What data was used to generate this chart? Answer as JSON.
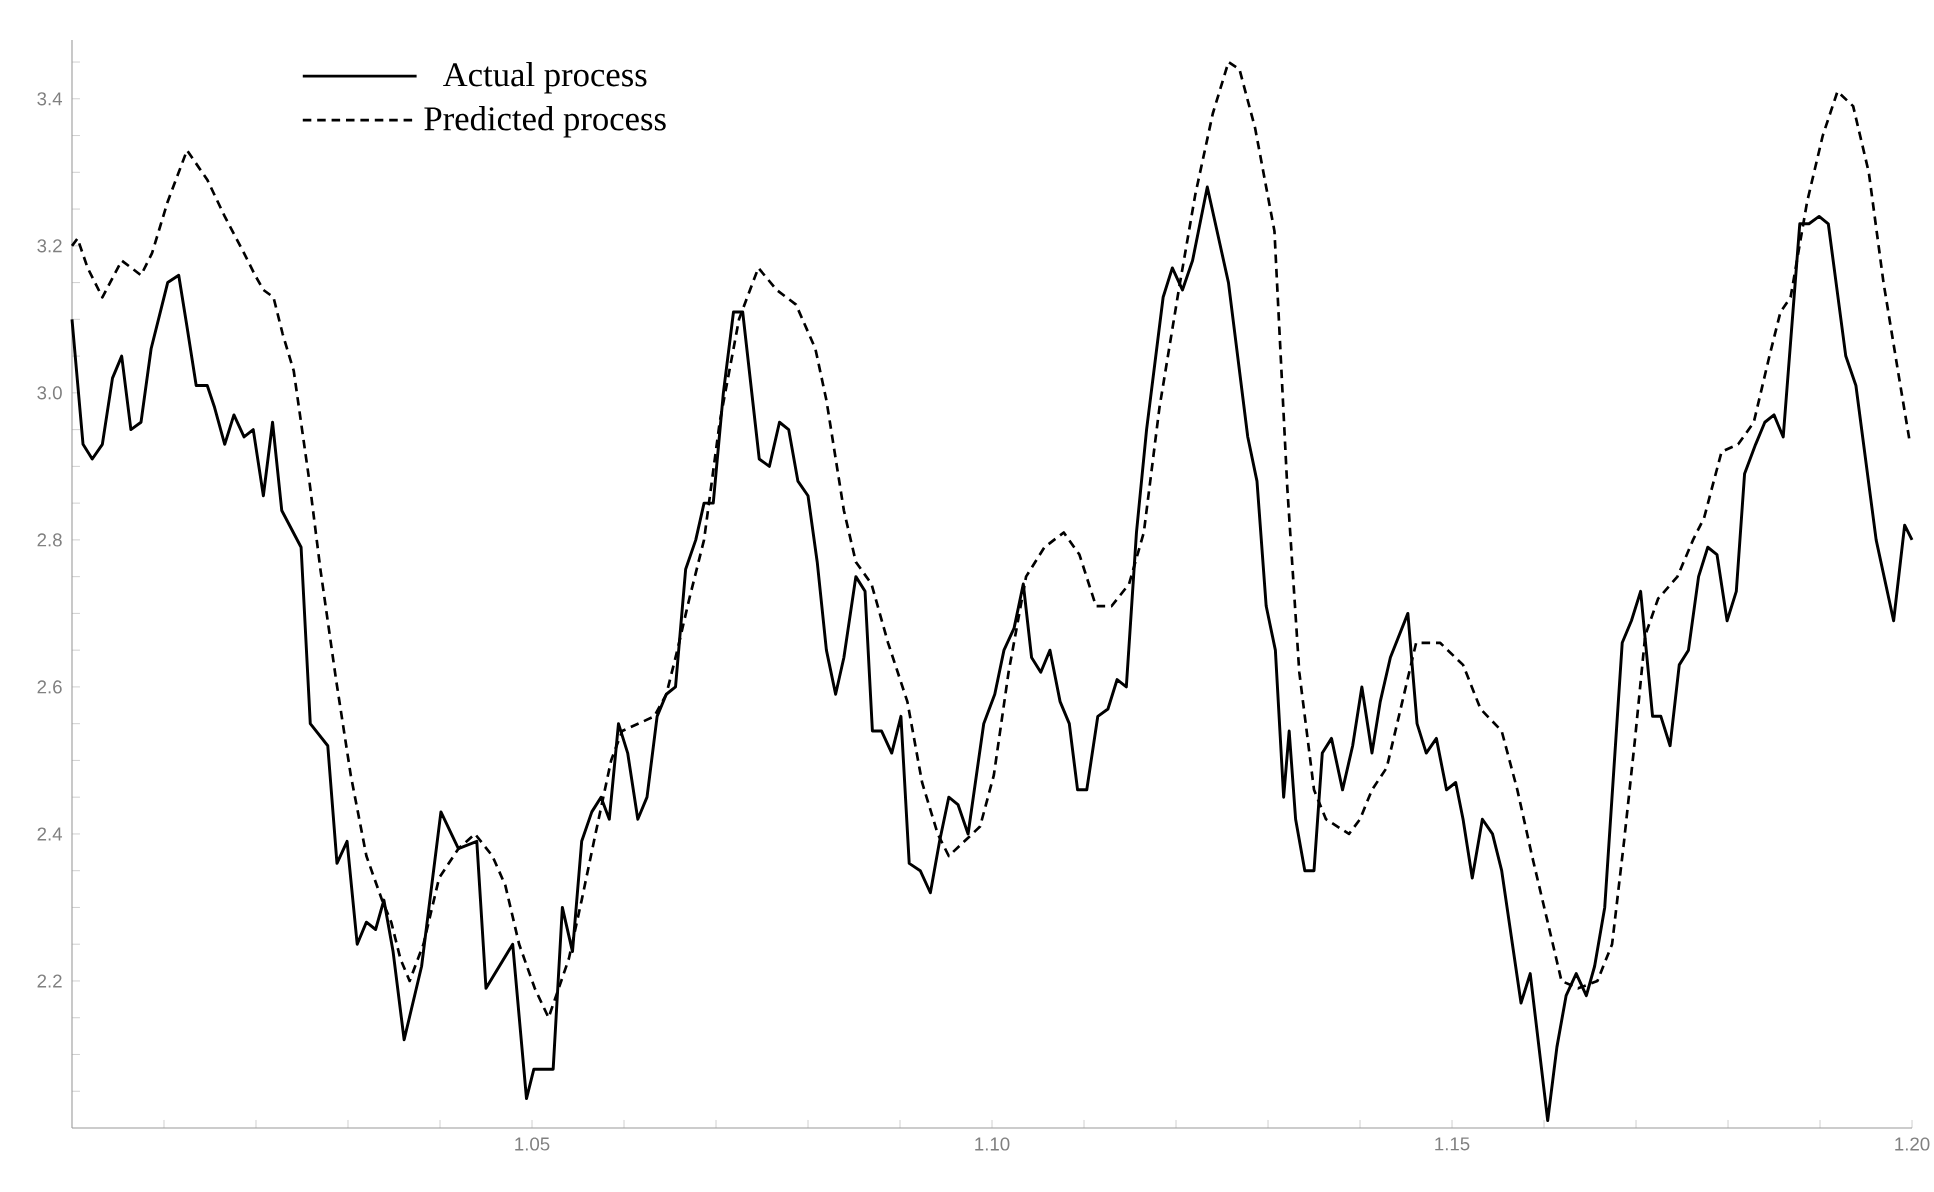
{
  "chart_data": {
    "type": "line",
    "xlim": [
      1.0,
      1.2
    ],
    "ylim": [
      2.0,
      3.48
    ],
    "xticks": [
      {
        "value": 1.01,
        "label": null
      },
      {
        "value": 1.02,
        "label": null
      },
      {
        "value": 1.03,
        "label": null
      },
      {
        "value": 1.04,
        "label": null
      },
      1.05,
      {
        "value": 1.06,
        "label": null
      },
      {
        "value": 1.07,
        "label": null
      },
      {
        "value": 1.08,
        "label": null
      },
      {
        "value": 1.09,
        "label": null
      },
      {
        "value": 1.1,
        "label": "1.10"
      },
      {
        "value": 1.11,
        "label": null
      },
      {
        "value": 1.12,
        "label": null
      },
      {
        "value": 1.13,
        "label": null
      },
      {
        "value": 1.14,
        "label": null
      },
      1.15,
      {
        "value": 1.16,
        "label": null
      },
      {
        "value": 1.17,
        "label": null
      },
      {
        "value": 1.18,
        "label": null
      },
      {
        "value": 1.19,
        "label": null
      },
      {
        "value": 1.2,
        "label": "1.20"
      }
    ],
    "yticks": [
      {
        "value": 2.05,
        "label": null
      },
      {
        "value": 2.1,
        "label": null
      },
      {
        "value": 2.15,
        "label": null
      },
      2.2,
      {
        "value": 2.25,
        "label": null
      },
      {
        "value": 2.3,
        "label": null
      },
      {
        "value": 2.35,
        "label": null
      },
      2.4,
      {
        "value": 2.45,
        "label": null
      },
      {
        "value": 2.5,
        "label": null
      },
      {
        "value": 2.55,
        "label": null
      },
      2.6,
      {
        "value": 2.65,
        "label": null
      },
      {
        "value": 2.7,
        "label": null
      },
      {
        "value": 2.75,
        "label": null
      },
      2.8,
      {
        "value": 2.85,
        "label": null
      },
      {
        "value": 2.9,
        "label": null
      },
      {
        "value": 2.95,
        "label": null
      },
      {
        "value": 3.0,
        "label": "3.0"
      },
      {
        "value": 3.05,
        "label": null
      },
      {
        "value": 3.1,
        "label": null
      },
      {
        "value": 3.15,
        "label": null
      },
      3.2,
      {
        "value": 3.25,
        "label": null
      },
      {
        "value": 3.3,
        "label": null
      },
      {
        "value": 3.35,
        "label": null
      },
      3.4,
      {
        "value": 3.45,
        "label": null
      }
    ],
    "legend": "top left",
    "grid": false,
    "marker": "none",
    "series": [
      {
        "name": "Actual process",
        "color": "#000000",
        "line_style": "solid",
        "x": [
          1.0,
          1.0012,
          1.0022,
          1.0033,
          1.0044,
          1.0054,
          1.0064,
          1.0075,
          1.0086,
          1.0094,
          1.0104,
          1.0116,
          1.0125,
          1.0135,
          1.0147,
          1.0155,
          1.0166,
          1.0176,
          1.0187,
          1.0197,
          1.0208,
          1.0218,
          1.0228,
          1.0249,
          1.0259,
          1.0278,
          1.0288,
          1.0299,
          1.031,
          1.032,
          1.033,
          1.0339,
          1.0349,
          1.0361,
          1.038,
          1.0401,
          1.042,
          1.044,
          1.045,
          1.0479,
          1.0494,
          1.0502,
          1.0523,
          1.0533,
          1.0544,
          1.0554,
          1.0565,
          1.0575,
          1.0584,
          1.0594,
          1.0604,
          1.0615,
          1.0625,
          1.0636,
          1.0646,
          1.0656,
          1.0667,
          1.0678,
          1.0687,
          1.0697,
          1.0708,
          1.0719,
          1.0729,
          1.0747,
          1.0758,
          1.0769,
          1.0779,
          1.0789,
          1.08,
          1.081,
          1.082,
          1.083,
          1.0839,
          1.0852,
          1.0862,
          1.087,
          1.088,
          1.0891,
          1.0901,
          1.091,
          1.0922,
          1.0933,
          1.0943,
          1.0953,
          1.0963,
          1.0974,
          1.0991,
          1.1003,
          1.1013,
          1.1024,
          1.1034,
          1.1043,
          1.1053,
          1.1063,
          1.1074,
          1.1084,
          1.1093,
          1.1103,
          1.1115,
          1.1126,
          1.1136,
          1.1146,
          1.1157,
          1.1168,
          1.1186,
          1.1196,
          1.1207,
          1.1218,
          1.1234,
          1.1257,
          1.1278,
          1.1288,
          1.1298,
          1.1308,
          1.1317,
          1.1323,
          1.133,
          1.134,
          1.135,
          1.1359,
          1.1369,
          1.1381,
          1.1392,
          1.1402,
          1.1413,
          1.1422,
          1.1433,
          1.1452,
          1.1462,
          1.1472,
          1.1483,
          1.1494,
          1.1504,
          1.1512,
          1.1522,
          1.1533,
          1.1544,
          1.1554,
          1.1575,
          1.1585,
          1.1604,
          1.1614,
          1.1624,
          1.1635,
          1.1646,
          1.1655,
          1.1666,
          1.1685,
          1.1695,
          1.1705,
          1.1718,
          1.1727,
          1.1737,
          1.1747,
          1.1757,
          1.1768,
          1.1778,
          1.1788,
          1.1799,
          1.1809,
          1.1818,
          1.183,
          1.184,
          1.185,
          1.186,
          1.1878,
          1.1888,
          1.1899,
          1.1909,
          1.1928,
          1.1939,
          1.1961,
          1.198,
          1.1992,
          1.2
        ],
        "values": [
          3.1,
          2.93,
          2.91,
          2.93,
          3.02,
          3.05,
          2.95,
          2.96,
          3.06,
          3.1,
          3.15,
          3.16,
          3.09,
          3.01,
          3.01,
          2.98,
          2.93,
          2.97,
          2.94,
          2.95,
          2.86,
          2.96,
          2.84,
          2.79,
          2.55,
          2.52,
          2.36,
          2.39,
          2.25,
          2.28,
          2.27,
          2.31,
          2.24,
          2.12,
          2.22,
          2.43,
          2.38,
          2.39,
          2.19,
          2.25,
          2.04,
          2.08,
          2.08,
          2.3,
          2.24,
          2.39,
          2.43,
          2.45,
          2.42,
          2.55,
          2.51,
          2.42,
          2.45,
          2.56,
          2.59,
          2.6,
          2.76,
          2.8,
          2.85,
          2.85,
          3.0,
          3.11,
          3.11,
          2.91,
          2.9,
          2.96,
          2.95,
          2.88,
          2.86,
          2.77,
          2.65,
          2.59,
          2.64,
          2.75,
          2.73,
          2.54,
          2.54,
          2.51,
          2.56,
          2.36,
          2.35,
          2.32,
          2.39,
          2.45,
          2.44,
          2.4,
          2.55,
          2.59,
          2.65,
          2.68,
          2.74,
          2.64,
          2.62,
          2.65,
          2.58,
          2.55,
          2.46,
          2.46,
          2.56,
          2.57,
          2.61,
          2.6,
          2.81,
          2.95,
          3.13,
          3.17,
          3.14,
          3.18,
          3.28,
          3.15,
          2.94,
          2.88,
          2.71,
          2.65,
          2.45,
          2.54,
          2.42,
          2.35,
          2.35,
          2.51,
          2.53,
          2.46,
          2.52,
          2.6,
          2.51,
          2.58,
          2.64,
          2.7,
          2.55,
          2.51,
          2.53,
          2.46,
          2.47,
          2.42,
          2.34,
          2.42,
          2.4,
          2.35,
          2.17,
          2.21,
          2.01,
          2.11,
          2.18,
          2.21,
          2.18,
          2.22,
          2.3,
          2.66,
          2.69,
          2.73,
          2.56,
          2.56,
          2.52,
          2.63,
          2.65,
          2.75,
          2.79,
          2.78,
          2.69,
          2.73,
          2.89,
          2.93,
          2.96,
          2.97,
          2.94,
          3.23,
          3.23,
          3.24,
          3.23,
          3.05,
          3.01,
          2.8,
          2.69,
          2.82,
          2.8
        ]
      },
      {
        "name": "Predicted process",
        "color": "#000000",
        "line_style": "dashed",
        "x": [
          1.0,
          1.0006,
          1.0017,
          1.0033,
          1.0054,
          1.0075,
          1.0087,
          1.0104,
          1.0125,
          1.0147,
          1.0166,
          1.0187,
          1.0199,
          1.0208,
          1.0219,
          1.0229,
          1.0241,
          1.0258,
          1.027,
          1.0287,
          1.0303,
          1.032,
          1.0337,
          1.0347,
          1.0357,
          1.0367,
          1.0382,
          1.0399,
          1.042,
          1.0438,
          1.0457,
          1.0471,
          1.0486,
          1.0503,
          1.0518,
          1.054,
          1.0554,
          1.0569,
          1.0586,
          1.0598,
          1.0633,
          1.0646,
          1.0658,
          1.0671,
          1.0687,
          1.0704,
          1.0725,
          1.0746,
          1.0766,
          1.0787,
          1.0808,
          1.082,
          1.0839,
          1.0852,
          1.0869,
          1.0887,
          1.0908,
          1.0924,
          1.0941,
          1.0953,
          1.097,
          1.0987,
          1.1002,
          1.1018,
          1.1037,
          1.1057,
          1.1078,
          1.1095,
          1.1113,
          1.113,
          1.1149,
          1.1165,
          1.1182,
          1.1203,
          1.1221,
          1.124,
          1.1257,
          1.1269,
          1.1286,
          1.1307,
          1.1321,
          1.1334,
          1.135,
          1.1363,
          1.1388,
          1.14,
          1.1413,
          1.1429,
          1.1446,
          1.1461,
          1.1487,
          1.1512,
          1.1531,
          1.1554,
          1.1571,
          1.1587,
          1.1604,
          1.1619,
          1.1637,
          1.1658,
          1.1674,
          1.1687,
          1.1699,
          1.171,
          1.1724,
          1.1745,
          1.1762,
          1.1774,
          1.1793,
          1.1811,
          1.1828,
          1.1845,
          1.1857,
          1.1868,
          1.1886,
          1.1903,
          1.1919,
          1.1936,
          1.1953,
          1.1969,
          1.1986,
          1.1998
        ],
        "values": [
          3.2,
          3.21,
          3.17,
          3.13,
          3.18,
          3.16,
          3.19,
          3.26,
          3.33,
          3.29,
          3.24,
          3.19,
          3.16,
          3.14,
          3.13,
          3.08,
          3.03,
          2.88,
          2.76,
          2.61,
          2.48,
          2.37,
          2.31,
          2.28,
          2.23,
          2.2,
          2.25,
          2.34,
          2.38,
          2.4,
          2.37,
          2.33,
          2.25,
          2.19,
          2.15,
          2.23,
          2.31,
          2.4,
          2.5,
          2.54,
          2.56,
          2.59,
          2.65,
          2.72,
          2.8,
          2.96,
          3.1,
          3.17,
          3.14,
          3.12,
          3.06,
          2.99,
          2.84,
          2.77,
          2.74,
          2.66,
          2.58,
          2.47,
          2.4,
          2.37,
          2.39,
          2.41,
          2.48,
          2.62,
          2.75,
          2.79,
          2.81,
          2.78,
          2.71,
          2.71,
          2.74,
          2.81,
          2.98,
          3.14,
          3.27,
          3.38,
          3.45,
          3.44,
          3.36,
          3.22,
          2.87,
          2.62,
          2.46,
          2.42,
          2.4,
          2.42,
          2.46,
          2.49,
          2.58,
          2.66,
          2.66,
          2.63,
          2.57,
          2.54,
          2.46,
          2.37,
          2.28,
          2.2,
          2.19,
          2.2,
          2.25,
          2.39,
          2.53,
          2.67,
          2.72,
          2.75,
          2.8,
          2.83,
          2.92,
          2.93,
          2.96,
          3.05,
          3.11,
          3.13,
          3.26,
          3.35,
          3.41,
          3.39,
          3.3,
          3.15,
          3.02,
          2.93
        ]
      }
    ]
  }
}
